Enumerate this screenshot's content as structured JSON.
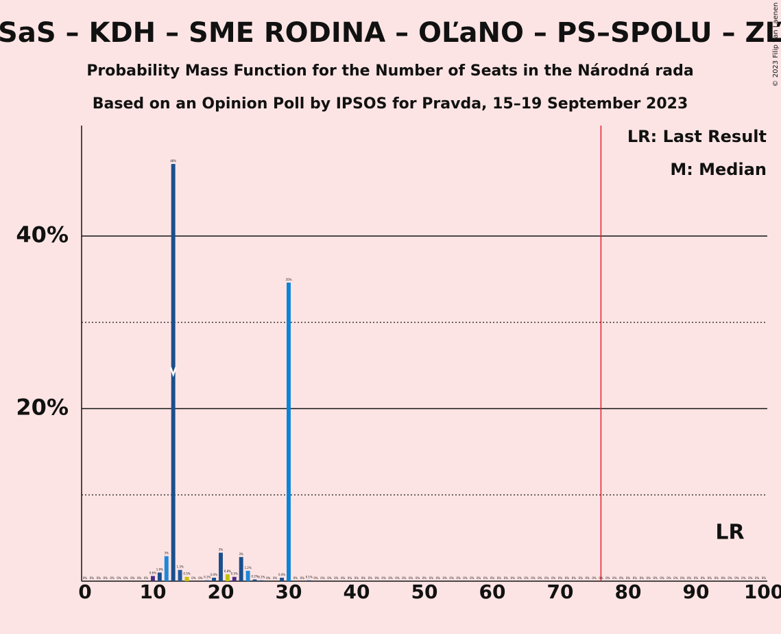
{
  "chart_data": {
    "type": "bar",
    "title": "SaS – KDH – SME RODINA – OĽaNO – PS–SPOLU – ZĽ",
    "subtitle": "Probability Mass Function for the Number of Seats in the Národná rada",
    "subtitle2": "Based on an Opinion Poll by IPSOS for Pravda, 15–19 September 2023",
    "copyright": "© 2023 Filip van Laenen",
    "legend": [
      "LR: Last Result",
      "M: Median"
    ],
    "xlim": [
      -0.5,
      100.5
    ],
    "xticks": [
      0,
      10,
      20,
      30,
      40,
      50,
      60,
      70,
      80,
      90,
      100
    ],
    "ylim": [
      0,
      52.8
    ],
    "yticks": [
      {
        "value": 20,
        "label": "20%"
      },
      {
        "value": 40,
        "label": "40%"
      }
    ],
    "minor_gridlines": [
      10,
      30
    ],
    "majority": 76,
    "majority_color": "#e0202a",
    "median": 13,
    "last_result": 95,
    "last_result_label": "LR",
    "values": [
      0,
      0,
      0,
      0,
      0,
      0,
      0,
      0,
      0,
      0,
      0.6,
      1.0,
      2.9,
      48.35,
      1.3,
      0.5,
      0,
      0,
      0.1,
      0.4,
      3.3,
      0.8,
      0.5,
      2.8,
      1.2,
      0.2,
      0.1,
      0,
      0,
      0.4,
      34.6,
      0,
      0,
      0.1,
      0,
      0,
      0,
      0,
      0,
      0,
      0,
      0,
      0,
      0,
      0,
      0,
      0,
      0,
      0,
      0,
      0,
      0,
      0,
      0,
      0,
      0,
      0,
      0,
      0,
      0,
      0,
      0,
      0,
      0,
      0,
      0,
      0,
      0,
      0,
      0,
      0,
      0,
      0,
      0,
      0,
      0,
      0,
      0,
      0,
      0,
      0,
      0,
      0,
      0,
      0,
      0,
      0,
      0,
      0,
      0,
      0,
      0,
      0,
      0,
      0,
      0,
      0,
      0,
      0,
      0,
      0
    ],
    "value_labels": [
      "0%",
      "0%",
      "0%",
      "0%",
      "0%",
      "0%",
      "0%",
      "0%",
      "0%",
      "0%",
      "0.6%",
      "1.0%",
      "3%",
      "48%",
      "1.3%",
      "0.5%",
      "0%",
      "0%",
      "0.1%",
      "0.4%",
      "3%",
      "0.8%",
      "0.5%",
      "3%",
      "1.2%",
      "0.2%",
      "0.1%",
      "0%",
      "0%",
      "0.4%",
      "35%",
      "0%",
      "0%",
      "0.1%",
      "0%",
      "0%",
      "0%",
      "0%",
      "0%",
      "0%",
      "0%",
      "0%",
      "0%",
      "0%",
      "0%",
      "0%",
      "0%",
      "0%",
      "0%",
      "0%",
      "0%",
      "0%",
      "0%",
      "0%",
      "0%",
      "0%",
      "0%",
      "0%",
      "0%",
      "0%",
      "0%",
      "0%",
      "0%",
      "0%",
      "0%",
      "0%",
      "0%",
      "0%",
      "0%",
      "0%",
      "0%",
      "0%",
      "0%",
      "0%",
      "0%",
      "0%",
      "0%",
      "0%",
      "0%",
      "0%",
      "0%",
      "0%",
      "0%",
      "0%",
      "0%",
      "0%",
      "0%",
      "0%",
      "0%",
      "0%",
      "0%",
      "0%",
      "0%",
      "0%",
      "0%",
      "0%",
      "0%",
      "0%",
      "0%",
      "0%",
      "0%"
    ],
    "colors": [
      "#1b4f8c",
      "#1b4f8c",
      "#1b4f8c",
      "#1b4f8c",
      "#1b4f8c",
      "#1b4f8c",
      "#1b4f8c",
      "#1b4f8c",
      "#1b4f8c",
      "#1b4f8c",
      "#4b2c85",
      "#1b4f8c",
      "#1e88d8",
      "#1b4f8c",
      "#1f5a9e",
      "#c5c200",
      "#1b4f8c",
      "#1b4f8c",
      "#1b4f8c",
      "#1b4f8c",
      "#1b4f8c",
      "#c5c200",
      "#4b2c85",
      "#1b4f8c",
      "#1e88d8",
      "#1b4f8c",
      "#1b4f8c",
      "#1b4f8c",
      "#1b4f8c",
      "#1b4f8c",
      "#0a84d6",
      "#1b4f8c",
      "#1b4f8c",
      "#1b4f8c",
      "#1b4f8c",
      "#1b4f8c",
      "#1b4f8c",
      "#1b4f8c",
      "#1b4f8c",
      "#1b4f8c",
      "#1b4f8c",
      "#1b4f8c",
      "#1b4f8c",
      "#1b4f8c",
      "#1b4f8c",
      "#1b4f8c",
      "#1b4f8c",
      "#1b4f8c",
      "#1b4f8c",
      "#1b4f8c",
      "#1b4f8c",
      "#1b4f8c",
      "#1b4f8c",
      "#1b4f8c",
      "#1b4f8c",
      "#1b4f8c",
      "#1b4f8c",
      "#1b4f8c",
      "#1b4f8c",
      "#1b4f8c",
      "#1b4f8c",
      "#1b4f8c",
      "#1b4f8c",
      "#1b4f8c",
      "#1b4f8c",
      "#1b4f8c",
      "#1b4f8c",
      "#1b4f8c",
      "#1b4f8c",
      "#1b4f8c",
      "#1b4f8c",
      "#1b4f8c",
      "#1b4f8c",
      "#1b4f8c",
      "#1b4f8c",
      "#1b4f8c",
      "#1b4f8c",
      "#1b4f8c",
      "#1b4f8c",
      "#1b4f8c",
      "#1b4f8c",
      "#1b4f8c",
      "#1b4f8c",
      "#1b4f8c",
      "#1b4f8c",
      "#1b4f8c",
      "#1b4f8c",
      "#1b4f8c",
      "#1b4f8c",
      "#1b4f8c",
      "#1b4f8c",
      "#1b4f8c",
      "#1b4f8c",
      "#1b4f8c",
      "#1b4f8c",
      "#1b4f8c",
      "#1b4f8c",
      "#1b4f8c",
      "#1b4f8c",
      "#1b4f8c",
      "#1b4f8c"
    ]
  }
}
